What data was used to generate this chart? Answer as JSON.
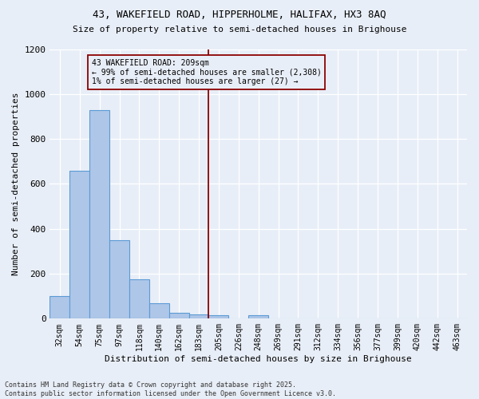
{
  "title1": "43, WAKEFIELD ROAD, HIPPERHOLME, HALIFAX, HX3 8AQ",
  "title2": "Size of property relative to semi-detached houses in Brighouse",
  "xlabel": "Distribution of semi-detached houses by size in Brighouse",
  "ylabel": "Number of semi-detached properties",
  "bins": [
    "32sqm",
    "54sqm",
    "75sqm",
    "97sqm",
    "118sqm",
    "140sqm",
    "162sqm",
    "183sqm",
    "205sqm",
    "226sqm",
    "248sqm",
    "269sqm",
    "291sqm",
    "312sqm",
    "334sqm",
    "356sqm",
    "377sqm",
    "399sqm",
    "420sqm",
    "442sqm",
    "463sqm"
  ],
  "bar_values": [
    100,
    660,
    930,
    350,
    175,
    70,
    25,
    20,
    15,
    0,
    15,
    0,
    0,
    0,
    0,
    0,
    0,
    0,
    0,
    0,
    0
  ],
  "bar_color": "#aec6e8",
  "bar_edge_color": "#5b9bd5",
  "property_line_bin": 8,
  "annotation_text_line1": "43 WAKEFIELD ROAD: 209sqm",
  "annotation_text_line2": "← 99% of semi-detached houses are smaller (2,308)",
  "annotation_text_line3": "1% of semi-detached houses are larger (27) →",
  "ylim": [
    0,
    1200
  ],
  "yticks": [
    0,
    200,
    400,
    600,
    800,
    1000,
    1200
  ],
  "footer_line1": "Contains HM Land Registry data © Crown copyright and database right 2025.",
  "footer_line2": "Contains public sector information licensed under the Open Government Licence v3.0.",
  "bg_color": "#e8eef7"
}
